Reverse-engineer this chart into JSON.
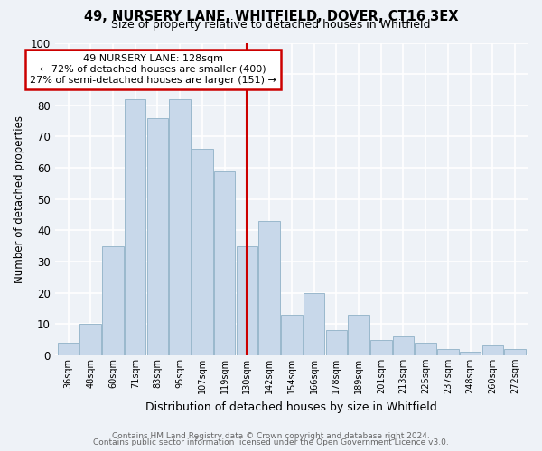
{
  "title1": "49, NURSERY LANE, WHITFIELD, DOVER, CT16 3EX",
  "title2": "Size of property relative to detached houses in Whitfield",
  "xlabel": "Distribution of detached houses by size in Whitfield",
  "ylabel": "Number of detached properties",
  "bar_labels": [
    "36sqm",
    "48sqm",
    "60sqm",
    "71sqm",
    "83sqm",
    "95sqm",
    "107sqm",
    "119sqm",
    "130sqm",
    "142sqm",
    "154sqm",
    "166sqm",
    "178sqm",
    "189sqm",
    "201sqm",
    "213sqm",
    "225sqm",
    "237sqm",
    "248sqm",
    "260sqm",
    "272sqm"
  ],
  "bar_values": [
    4,
    10,
    35,
    82,
    76,
    82,
    66,
    59,
    35,
    43,
    13,
    20,
    8,
    13,
    5,
    6,
    4,
    2,
    1,
    3,
    2
  ],
  "bar_color": "#c8d8ea",
  "bar_edge_color": "#9ab8cc",
  "marker_index": 8,
  "marker_line_color": "#cc0000",
  "annotation_text_line1": "49 NURSERY LANE: 128sqm",
  "annotation_text_line2": "← 72% of detached houses are smaller (400)",
  "annotation_text_line3": "27% of semi-detached houses are larger (151) →",
  "annotation_box_facecolor": "#ffffff",
  "annotation_box_edgecolor": "#cc0000",
  "ylim": [
    0,
    100
  ],
  "yticks": [
    0,
    10,
    20,
    30,
    40,
    50,
    60,
    70,
    80,
    90,
    100
  ],
  "footer1": "Contains HM Land Registry data © Crown copyright and database right 2024.",
  "footer2": "Contains public sector information licensed under the Open Government Licence v3.0.",
  "bg_color": "#eef2f7",
  "grid_color": "#ffffff"
}
